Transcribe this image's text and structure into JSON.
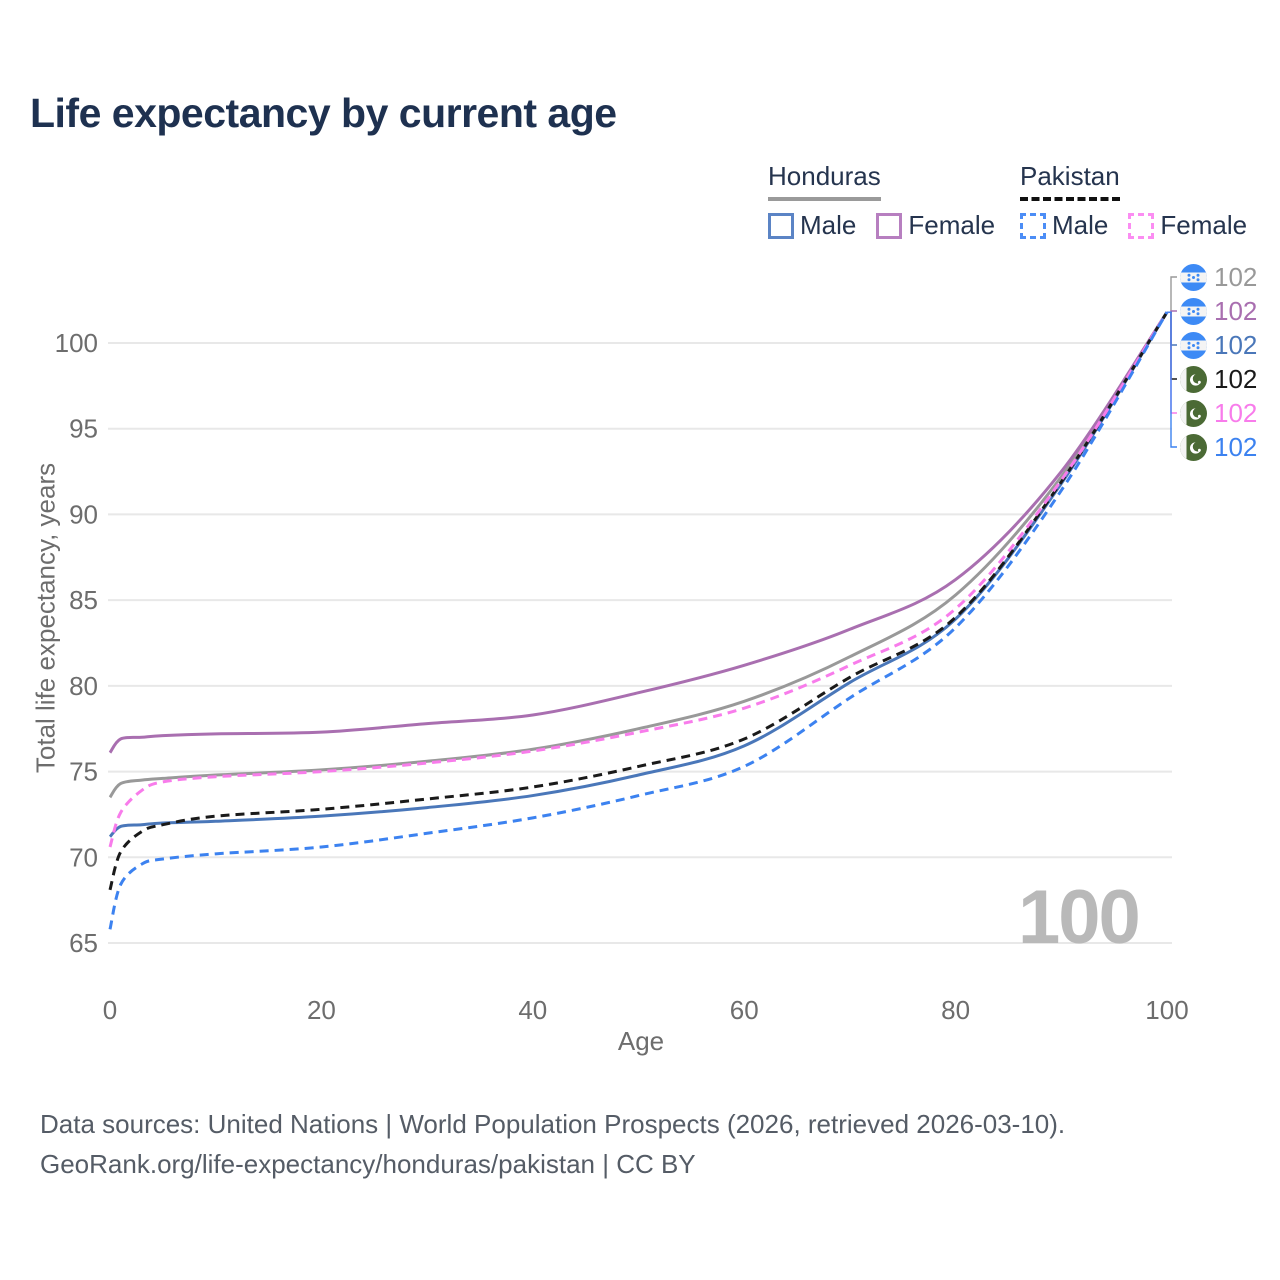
{
  "title": "Life expectancy by current age",
  "legend": {
    "groups": [
      {
        "label": "Honduras",
        "line_style": "solid",
        "underline_color": "#9a9a9a",
        "items": [
          {
            "label": "Male",
            "color": "#5b84c5",
            "dashed": false
          },
          {
            "label": "Female",
            "color": "#b77fc0",
            "dashed": false
          }
        ]
      },
      {
        "label": "Pakistan",
        "line_style": "dashed",
        "underline_color": "#111111",
        "items": [
          {
            "label": "Male",
            "color": "#4c8df6",
            "dashed": true
          },
          {
            "label": "Female",
            "color": "#fb8df2",
            "dashed": true
          }
        ]
      }
    ]
  },
  "chart_data": {
    "type": "line",
    "title": "Life expectancy by current age",
    "xlabel": "Age",
    "ylabel": "Total life expectancy, years",
    "xlim": [
      0,
      100
    ],
    "ylim": [
      65,
      102.5
    ],
    "xticks": [
      0,
      20,
      40,
      60,
      80,
      100
    ],
    "yticks": [
      65,
      70,
      75,
      80,
      85,
      90,
      95,
      100
    ],
    "grid": "horizontal",
    "x": [
      0,
      1,
      3,
      5,
      10,
      20,
      30,
      40,
      50,
      60,
      70,
      80,
      90,
      100
    ],
    "series": [
      {
        "id": "honduras_both",
        "country": "Honduras",
        "sex": "both",
        "color": "#999999",
        "dash": "solid",
        "values": [
          73.5,
          74.3,
          74.5,
          74.6,
          74.8,
          75.1,
          75.6,
          76.3,
          77.5,
          79.1,
          81.7,
          85.3,
          92.2,
          101.8
        ]
      },
      {
        "id": "honduras_female",
        "country": "Honduras",
        "sex": "female",
        "color": "#a96fb0",
        "dash": "solid",
        "values": [
          76.1,
          76.9,
          77.0,
          77.1,
          77.2,
          77.3,
          77.8,
          78.3,
          79.6,
          81.2,
          83.3,
          86.2,
          92.5,
          101.8
        ]
      },
      {
        "id": "honduras_male",
        "country": "Honduras",
        "sex": "male",
        "color": "#4a77b9",
        "dash": "solid",
        "values": [
          71.2,
          71.8,
          71.9,
          72.0,
          72.1,
          72.4,
          72.9,
          73.6,
          74.8,
          76.5,
          80.2,
          83.9,
          91.8,
          101.8
        ]
      },
      {
        "id": "pakistan_both",
        "country": "Pakistan",
        "sex": "both",
        "color": "#1a1a1a",
        "dash": "dashed",
        "values": [
          68.1,
          70.3,
          71.5,
          71.9,
          72.4,
          72.8,
          73.4,
          74.1,
          75.3,
          76.9,
          80.5,
          84.0,
          91.9,
          101.8
        ]
      },
      {
        "id": "pakistan_female",
        "country": "Pakistan",
        "sex": "female",
        "color": "#f87ceb",
        "dash": "dashed",
        "values": [
          70.6,
          72.6,
          73.9,
          74.4,
          74.7,
          75.0,
          75.5,
          76.2,
          77.3,
          78.7,
          81.2,
          84.5,
          92.0,
          101.8
        ]
      },
      {
        "id": "pakistan_male",
        "country": "Pakistan",
        "sex": "male",
        "color": "#3c82f0",
        "dash": "dashed",
        "values": [
          65.8,
          68.4,
          69.6,
          69.9,
          70.2,
          70.6,
          71.4,
          72.3,
          73.6,
          75.3,
          79.3,
          83.4,
          91.4,
          101.8
        ]
      }
    ],
    "end_labels": [
      {
        "country": "Honduras",
        "value": "102",
        "color": "#999999"
      },
      {
        "country": "Honduras",
        "value": "102",
        "color": "#a96fb0"
      },
      {
        "country": "Honduras",
        "value": "102",
        "color": "#4a77b9"
      },
      {
        "country": "Pakistan",
        "value": "102",
        "color": "#1a1a1a"
      },
      {
        "country": "Pakistan",
        "value": "102",
        "color": "#f87ceb"
      },
      {
        "country": "Pakistan",
        "value": "102",
        "color": "#3c82f0"
      }
    ]
  },
  "watermark": "100",
  "footer": {
    "line1": "Data sources: United Nations | World Population Prospects (2026, retrieved 2026-03-10).",
    "line2": "GeoRank.org/life-expectancy/honduras/pakistan | CC BY"
  },
  "colors": {
    "title_navy": "#1e3150",
    "tick_gray": "#6d6d6d",
    "grid_gray": "#e8e8e8",
    "watermark_gray": "#b9b9b9",
    "footer_gray": "#555c66",
    "honduras_flag_blue": "#3d8af5",
    "pakistan_flag_green": "#4b6a35"
  }
}
